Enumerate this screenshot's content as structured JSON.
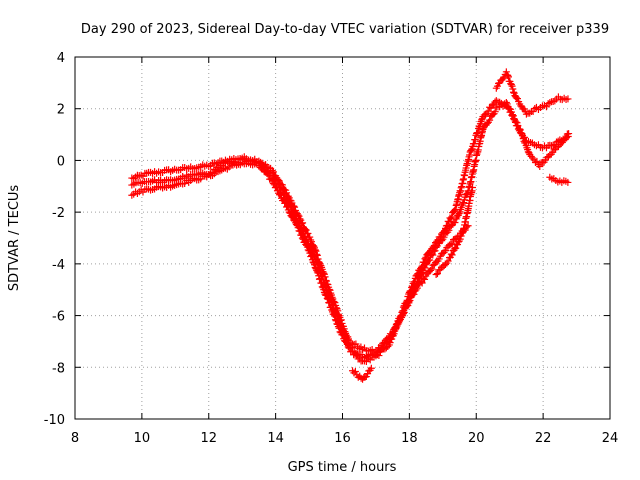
{
  "chart_data": {
    "type": "scatter",
    "title": "Day 290 of 2023, Sidereal Day-to-day VTEC variation (SDTVAR) for receiver p339",
    "xlabel": "GPS time / hours",
    "ylabel": "SDTVAR / TECUs",
    "xlim": [
      8,
      24
    ],
    "ylim": [
      -10,
      4
    ],
    "xticks": [
      8,
      10,
      12,
      14,
      16,
      18,
      20,
      22,
      24
    ],
    "yticks": [
      -10,
      -8,
      -6,
      -4,
      -2,
      0,
      2,
      4
    ],
    "grid": true,
    "marker": "+",
    "series": [
      {
        "name": "SDTVAR",
        "color": "#ff0000",
        "tracks": [
          [
            [
              9.7,
              -0.7
            ],
            [
              10.2,
              -0.5
            ],
            [
              10.8,
              -0.4
            ],
            [
              11.4,
              -0.3
            ],
            [
              12.0,
              -0.2
            ],
            [
              12.5,
              0.0
            ],
            [
              13.0,
              0.1
            ],
            [
              13.5,
              0.0
            ],
            [
              13.9,
              -0.4
            ],
            [
              14.3,
              -1.2
            ],
            [
              14.7,
              -2.2
            ],
            [
              15.1,
              -3.2
            ],
            [
              15.5,
              -4.6
            ],
            [
              15.9,
              -6.0
            ],
            [
              16.2,
              -7.0
            ],
            [
              16.6,
              -7.3
            ],
            [
              17.0,
              -7.4
            ],
            [
              17.4,
              -6.8
            ],
            [
              17.8,
              -6.0
            ],
            [
              18.2,
              -4.8
            ],
            [
              18.6,
              -3.8
            ],
            [
              19.0,
              -3.0
            ],
            [
              19.4,
              -2.3
            ],
            [
              19.8,
              -1.0
            ],
            [
              20.2,
              1.2
            ],
            [
              20.6,
              2.0
            ],
            [
              20.9,
              2.2
            ],
            [
              21.2,
              1.4
            ],
            [
              21.5,
              0.7
            ],
            [
              21.8,
              0.6
            ],
            [
              22.1,
              0.5
            ],
            [
              22.4,
              0.7
            ],
            [
              22.8,
              1.0
            ]
          ],
          [
            [
              9.7,
              -1.3
            ],
            [
              10.2,
              -1.1
            ],
            [
              10.8,
              -1.0
            ],
            [
              11.4,
              -0.8
            ],
            [
              12.0,
              -0.6
            ],
            [
              12.5,
              -0.3
            ],
            [
              13.0,
              -0.1
            ],
            [
              13.5,
              -0.2
            ],
            [
              13.9,
              -0.8
            ],
            [
              14.3,
              -1.7
            ],
            [
              14.7,
              -2.7
            ],
            [
              15.1,
              -3.8
            ],
            [
              15.5,
              -5.2
            ],
            [
              15.9,
              -6.5
            ],
            [
              16.2,
              -7.3
            ],
            [
              16.6,
              -7.8
            ],
            [
              17.0,
              -7.6
            ],
            [
              17.4,
              -7.1
            ],
            [
              17.8,
              -5.9
            ],
            [
              18.2,
              -5.0
            ],
            [
              18.6,
              -4.3
            ],
            [
              19.0,
              -3.6
            ],
            [
              19.4,
              -3.0
            ],
            [
              19.8,
              -2.5
            ]
          ],
          [
            [
              9.7,
              -0.9
            ],
            [
              10.2,
              -0.8
            ],
            [
              10.8,
              -0.8
            ],
            [
              11.4,
              -0.6
            ],
            [
              12.0,
              -0.5
            ],
            [
              12.5,
              -0.1
            ],
            [
              13.0,
              0.0
            ],
            [
              13.5,
              -0.1
            ],
            [
              13.9,
              -0.6
            ],
            [
              14.3,
              -1.4
            ],
            [
              14.7,
              -2.5
            ],
            [
              15.1,
              -3.5
            ],
            [
              15.5,
              -4.9
            ],
            [
              15.9,
              -6.2
            ],
            [
              16.2,
              -7.2
            ],
            [
              16.6,
              -7.6
            ],
            [
              17.0,
              -7.5
            ],
            [
              17.4,
              -7.0
            ],
            [
              17.8,
              -5.8
            ],
            [
              18.2,
              -4.5
            ],
            [
              18.6,
              -3.5
            ],
            [
              19.0,
              -2.8
            ],
            [
              19.4,
              -1.8
            ],
            [
              19.8,
              0.2
            ],
            [
              20.2,
              1.7
            ],
            [
              20.6,
              2.3
            ],
            [
              21.0,
              2.0
            ],
            [
              21.3,
              1.2
            ],
            [
              21.6,
              0.2
            ],
            [
              21.9,
              -0.2
            ],
            [
              22.2,
              0.2
            ],
            [
              22.5,
              0.6
            ],
            [
              22.8,
              1.1
            ]
          ],
          [
            [
              16.3,
              -8.1
            ],
            [
              16.6,
              -8.5
            ],
            [
              16.9,
              -8.0
            ]
          ],
          [
            [
              18.8,
              -4.4
            ],
            [
              19.2,
              -3.8
            ],
            [
              19.6,
              -2.8
            ],
            [
              19.9,
              -1.0
            ]
          ],
          [
            [
              20.6,
              2.8
            ],
            [
              20.9,
              3.4
            ],
            [
              21.2,
              2.4
            ],
            [
              21.5,
              1.8
            ],
            [
              21.8,
              2.0
            ],
            [
              22.1,
              2.1
            ],
            [
              22.4,
              2.4
            ],
            [
              22.8,
              2.4
            ]
          ],
          [
            [
              22.2,
              -0.7
            ],
            [
              22.5,
              -0.8
            ],
            [
              22.8,
              -0.9
            ]
          ]
        ]
      }
    ]
  }
}
